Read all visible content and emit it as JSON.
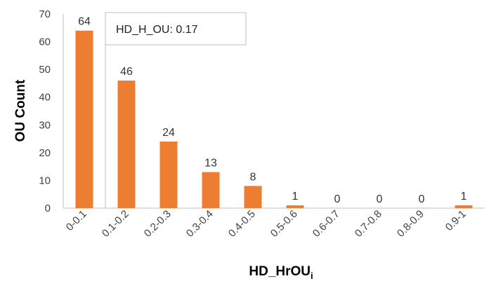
{
  "chart_data": {
    "type": "bar",
    "categories": [
      "0-0.1",
      "0.1-0.2",
      "0.2-0.3",
      "0.3-0.4",
      "0.4-0.5",
      "0.5-0.6",
      "0.6-0.7",
      "0.7-0.8",
      "0.8-0.9",
      "0.9-1"
    ],
    "values": [
      64,
      46,
      24,
      13,
      8,
      1,
      0,
      0,
      0,
      1
    ],
    "data_labels": [
      "64",
      "46",
      "24",
      "13",
      "8",
      "1",
      "0",
      "0",
      "0",
      "1"
    ],
    "title": "",
    "xlabel": "HD_HrOU",
    "xlabel_subscript": "i",
    "ylabel": "OU Count",
    "ylim": [
      0,
      70
    ],
    "yticks": [
      "0",
      "10",
      "20",
      "30",
      "40",
      "50",
      "60",
      "70"
    ],
    "grid": false,
    "legend": "none",
    "annotation": "HD_H_OU: 0.17",
    "bar_color": "#ED7D31"
  }
}
